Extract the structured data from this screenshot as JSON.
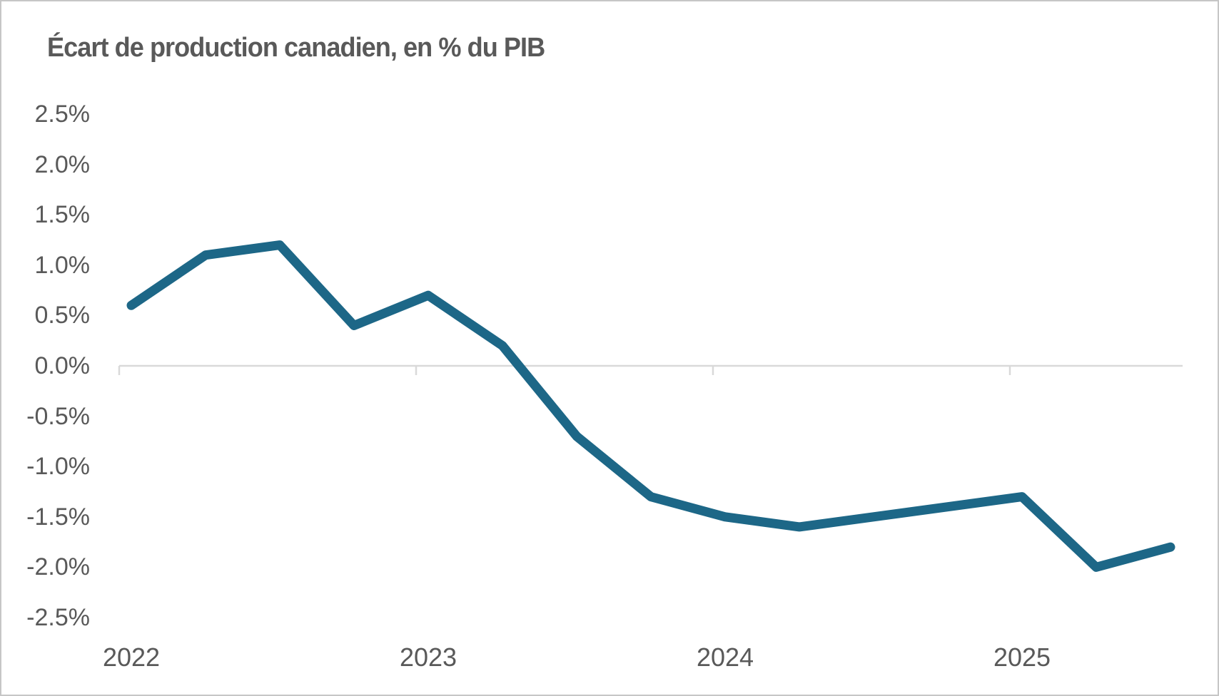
{
  "title": "Écart de production canadien, en % du PIB",
  "colors": {
    "line": "#1d6787",
    "axis_text": "#595959",
    "title_text": "#595959",
    "gridline": "#d9d9d9",
    "frame_border": "#c6c6c6",
    "background": "#ffffff"
  },
  "chart_data": {
    "type": "line",
    "title": "Écart de production canadien, en % du PIB",
    "x": [
      "2022-T1",
      "2022-T2",
      "2022-T3",
      "2022-T4",
      "2023-T1",
      "2023-T2",
      "2023-T3",
      "2023-T4",
      "2024-T1",
      "2024-T2",
      "2024-T3",
      "2024-T4",
      "2025-T1",
      "2025-T2",
      "2025-T3"
    ],
    "values": [
      0.6,
      1.1,
      1.2,
      0.4,
      0.7,
      0.2,
      -0.7,
      -1.3,
      -1.5,
      -1.6,
      -1.5,
      -1.4,
      -1.3,
      -2.0,
      -1.8
    ],
    "series": [
      {
        "name": "Écart de production canadien",
        "values": [
          0.6,
          1.1,
          1.2,
          0.4,
          0.7,
          0.2,
          -0.7,
          -1.3,
          -1.5,
          -1.6,
          -1.5,
          -1.4,
          -1.3,
          -2.0,
          -1.8
        ]
      }
    ],
    "x_tick_labels": [
      "2022",
      "2023",
      "2024",
      "2025"
    ],
    "y_tick_labels": [
      "2.5%",
      "2.0%",
      "1.5%",
      "1.0%",
      "0.5%",
      "0.0%",
      "-0.5%",
      "-1.0%",
      "-1.5%",
      "-2.0%",
      "-2.5%"
    ],
    "y_tick_values": [
      2.5,
      2.0,
      1.5,
      1.0,
      0.5,
      0.0,
      -0.5,
      -1.0,
      -1.5,
      -2.0,
      -2.5
    ],
    "ylim": [
      -2.5,
      2.5
    ],
    "ytick_step": 0.5,
    "xlabel": "",
    "ylabel": "",
    "legend": "none",
    "grid": "zero-axis-line-only"
  }
}
